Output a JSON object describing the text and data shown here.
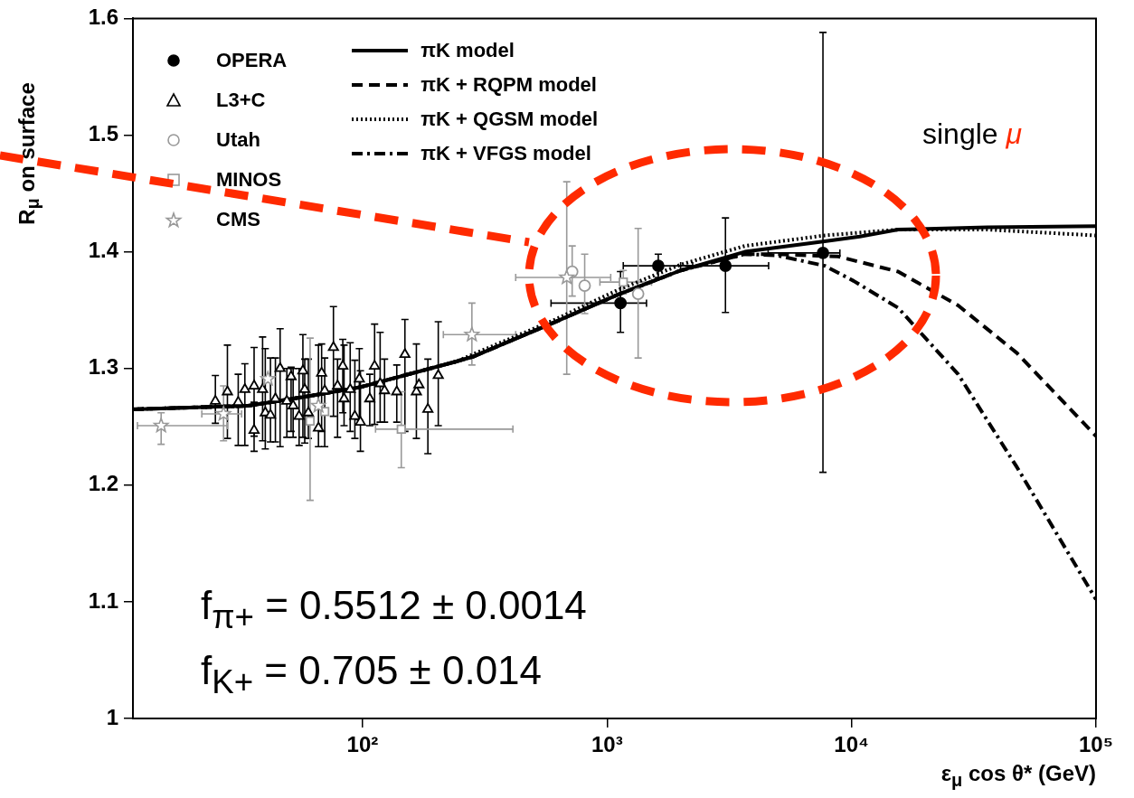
{
  "chart_data": {
    "type": "scatter",
    "xlabel": "ε$_{μ}$ cos θ* (GeV)",
    "ylabel": "R$_{μ}$ on surface",
    "log": "x",
    "xlim": [
      11.5,
      100000
    ],
    "xticks": [
      {
        "value": 100,
        "label": "10²"
      },
      {
        "value": 1000,
        "label": "10³"
      },
      {
        "value": 10000,
        "label": "10⁴"
      },
      {
        "value": 100000,
        "label": "10⁵"
      }
    ],
    "ylim": [
      1,
      1.6
    ],
    "yticks": [
      1,
      1.1,
      1.2,
      1.3,
      1.4,
      1.5,
      1.6
    ],
    "legend": "top left",
    "annotations": [
      "single μ",
      "f$_{π+}$ = 0.5512 ± 0.0014",
      "f$_{K+}$ = 0.705 ± 0.014"
    ],
    "series": [
      {
        "name": "OPERA",
        "marker": "circle",
        "color": "#000000",
        "x": [
          1135,
          1620,
          3050,
          7640
        ],
        "values": [
          1.356,
          1.388,
          1.388,
          1.399
        ],
        "errors": [
          [
            1.331,
            1.383
          ],
          [
            1.378,
            1.398
          ],
          [
            1.348,
            1.429
          ],
          [
            1.211,
            1.588
          ]
        ],
        "xerrors": [
          [
            590,
            1450
          ],
          [
            1165,
            2240
          ],
          [
            2000,
            4580
          ],
          [
            4560,
            8960
          ]
        ]
      },
      {
        "name": "L3+C",
        "marker": "triangle",
        "color": "#000000",
        "x": [
          25,
          28,
          31,
          33,
          36,
          36,
          39,
          40,
          42,
          44,
          46,
          49,
          51,
          52,
          55,
          57,
          58,
          60,
          66,
          68,
          70,
          76,
          79,
          83,
          84,
          89,
          93,
          97,
          98,
          107,
          112,
          118,
          123,
          138,
          149,
          166,
          170,
          185,
          204
        ],
        "values": [
          1.272,
          1.28,
          1.271,
          1.282,
          1.247,
          1.285,
          1.282,
          1.262,
          1.26,
          1.274,
          1.3,
          1.272,
          1.293,
          1.268,
          1.259,
          1.298,
          1.282,
          1.262,
          1.249,
          1.296,
          1.281,
          1.318,
          1.285,
          1.302,
          1.274,
          1.282,
          1.259,
          1.291,
          1.254,
          1.274,
          1.302,
          1.287,
          1.281,
          1.28,
          1.312,
          1.28,
          1.286,
          1.265,
          1.294
        ],
        "errors": [
          [
            1.253,
            1.294
          ],
          [
            1.24,
            1.32
          ],
          [
            1.234,
            1.295
          ],
          [
            1.234,
            1.304
          ],
          [
            1.229,
            1.271
          ],
          [
            1.242,
            1.318
          ],
          [
            1.238,
            1.327
          ],
          [
            1.231,
            1.317
          ],
          [
            1.237,
            1.309
          ],
          [
            1.237,
            1.309
          ],
          [
            1.233,
            1.334
          ],
          [
            1.241,
            1.3
          ],
          [
            1.246,
            1.301
          ],
          [
            1.241,
            1.3
          ],
          [
            1.234,
            1.3
          ],
          [
            1.241,
            1.329
          ],
          [
            1.236,
            1.308
          ],
          [
            1.24,
            1.308
          ],
          [
            1.233,
            1.32
          ],
          [
            1.246,
            1.321
          ],
          [
            1.233,
            1.309
          ],
          [
            1.259,
            1.353
          ],
          [
            1.241,
            1.308
          ],
          [
            1.262,
            1.325
          ],
          [
            1.251,
            1.32
          ],
          [
            1.246,
            1.322
          ],
          [
            1.24,
            1.307
          ],
          [
            1.256,
            1.317
          ],
          [
            1.229,
            1.298
          ],
          [
            1.251,
            1.295
          ],
          [
            1.252,
            1.338
          ],
          [
            1.254,
            1.331
          ],
          [
            1.254,
            1.308
          ],
          [
            1.254,
            1.303
          ],
          [
            1.246,
            1.342
          ],
          [
            1.24,
            1.321
          ],
          null,
          [
            1.227,
            1.308
          ],
          [
            1.251,
            1.34
          ]
        ]
      },
      {
        "name": "Utah",
        "marker": "circle",
        "color": "#999999",
        "x": [
          720,
          810,
          1340
        ],
        "values": [
          1.383,
          1.371,
          1.364
        ],
        "errors": [
          [
            1.362,
            1.405
          ],
          [
            1.347,
            1.398
          ],
          [
            1.309,
            1.42
          ]
        ]
      },
      {
        "name": "MINOS",
        "marker": "square",
        "color": "#999999",
        "x": [
          61,
          70,
          144,
          1165
        ],
        "values": [
          1.255,
          1.263,
          1.248,
          1.374
        ],
        "errors": [
          [
            1.187,
            1.326
          ],
          null,
          [
            1.215,
            1.28
          ],
          [
            1.364,
            1.384
          ]
        ],
        "xerrors": [
          null,
          null,
          [
            113,
            412
          ],
          [
            935,
            1520
          ]
        ]
      },
      {
        "name": "CMS",
        "marker": "star",
        "color": "#999999",
        "x": [
          15,
          27,
          41,
          66,
          280,
          684
        ],
        "values": [
          1.251,
          1.261,
          1.291,
          1.268,
          1.329,
          1.378
        ],
        "errors": [
          [
            1.235,
            1.262
          ],
          [
            1.238,
            1.285
          ],
          null,
          null,
          [
            1.303,
            1.356
          ],
          [
            1.295,
            1.46
          ]
        ],
        "xerrors": [
          [
            12,
            28
          ],
          [
            22,
            32
          ],
          null,
          null,
          [
            214,
            423
          ],
          [
            423,
            1035
          ]
        ]
      },
      {
        "name": "πK model",
        "type": "line",
        "line_style": "solid",
        "color": "#000000",
        "x": [
          11.5,
          34,
          59,
          98,
          242,
          282,
          600,
          1100,
          2000,
          3660,
          7770,
          10800,
          15500,
          36000,
          100000
        ],
        "values": [
          1.265,
          1.268,
          1.276,
          1.284,
          1.306,
          1.31,
          1.339,
          1.363,
          1.384,
          1.4,
          1.409,
          1.413,
          1.419,
          1.421,
          1.422
        ]
      },
      {
        "name": "πK + RQPM model",
        "type": "line",
        "line_style": "dashed",
        "color": "#000000",
        "x": [
          11.5,
          34,
          59,
          98,
          242,
          282,
          600,
          1100,
          2000,
          3660,
          4920,
          8800,
          15500,
          27300,
          47600,
          100000
        ],
        "values": [
          1.265,
          1.268,
          1.276,
          1.284,
          1.306,
          1.31,
          1.339,
          1.363,
          1.384,
          1.398,
          1.398,
          1.396,
          1.383,
          1.354,
          1.313,
          1.242
        ]
      },
      {
        "name": "πK + QGSM model",
        "type": "line",
        "line_style": "dotted",
        "color": "#000000",
        "x": [
          11.5,
          34,
          59,
          98,
          242,
          282,
          600,
          1100,
          2000,
          3660,
          7770,
          15500,
          36000,
          100000
        ],
        "values": [
          1.265,
          1.268,
          1.276,
          1.284,
          1.306,
          1.312,
          1.341,
          1.367,
          1.389,
          1.405,
          1.414,
          1.419,
          1.419,
          1.414
        ]
      },
      {
        "name": "πK + VFGS model",
        "type": "line",
        "line_style": "dashdot",
        "color": "#000000",
        "x": [
          11.5,
          34,
          59,
          98,
          242,
          282,
          600,
          1100,
          2000,
          3660,
          4920,
          7770,
          10200,
          15500,
          27300,
          47600,
          100000
        ],
        "values": [
          1.265,
          1.268,
          1.276,
          1.284,
          1.306,
          1.31,
          1.339,
          1.363,
          1.384,
          1.398,
          1.397,
          1.388,
          1.375,
          1.352,
          1.295,
          1.215,
          1.102
        ]
      }
    ]
  }
}
